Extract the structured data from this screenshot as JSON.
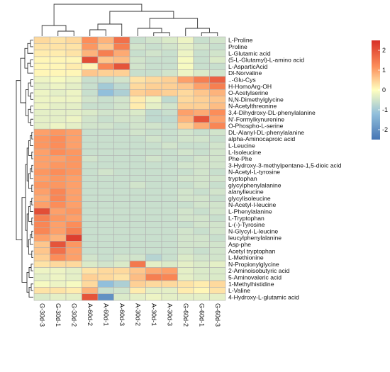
{
  "chart_data": {
    "type": "heatmap",
    "columns": [
      "G-30d-3",
      "G-30d-1",
      "G-30d-2",
      "A-60d-2",
      "A-60d-1",
      "A-60d-3",
      "A-30d-2",
      "A-30d-1",
      "A-30d-3",
      "G-60d-2",
      "G-60d-1",
      "G-60d-3"
    ],
    "rows": [
      "L-Proline",
      "Proline",
      "L-Glutamic acid",
      "(5-L-Glutamyl)-L-amino acid",
      "L-AsparticAcid",
      "Dl-Norvaline",
      "..-Glu-Cys",
      "H-HomoArg-OH",
      "O-Acetylserine",
      "N,N-Dimethylglycine",
      "N-Acetylthreonine",
      "3,4-Dihydroxy-DL-phenylalanine",
      "N'-Formylkynurenine",
      "O-Phospho-L-serine",
      "DL-Alanyl-DL-phenylalanine",
      "alpha-Aminocaproic acid",
      "L-Leucine",
      "L-Isoleucine",
      "Phe-Phe",
      "3-Hydroxy-3-methylpentane-1,5-dioic acid",
      "N-Acetyl-L-tyrosine",
      "tryptophan",
      "glycylphenylalanine",
      "alanylleucine",
      "glycylisoleucine",
      "N-Acetyl-l-leucine",
      "L-Phenylalanine",
      "L-Tryptophan",
      "L-(-)-Tyrosine",
      "N-Glycyl-L-leucine",
      "leucylphenylalanine",
      "Asp-phe",
      "Acetyl tryptophan",
      "L-Methionine",
      "N-Propionylglycine",
      "2-Aminoisobutyric acid",
      "5-Aminovaleric acid",
      "1-Methylhistidine",
      "L-Valine",
      "4-Hydroxy-L-glutamic acid"
    ],
    "values": [
      [
        0.4,
        0.3,
        0.4,
        1.2,
        0.8,
        1.6,
        -0.6,
        -0.5,
        -0.4,
        -0.2,
        -0.6,
        -0.5
      ],
      [
        0.3,
        0.3,
        0.3,
        1.1,
        0.6,
        1.4,
        -0.5,
        -0.6,
        -0.5,
        -0.3,
        -0.5,
        -0.6
      ],
      [
        0.2,
        0.2,
        0.3,
        0.8,
        1.4,
        0.9,
        -0.6,
        -0.5,
        -0.6,
        -0.2,
        -0.6,
        -0.5
      ],
      [
        0.1,
        0.1,
        0.1,
        2.1,
        0.6,
        0.7,
        -0.5,
        -0.6,
        -0.6,
        -0.1,
        -0.6,
        -0.4
      ],
      [
        0.1,
        0.1,
        0.2,
        0.1,
        1.3,
        2.0,
        -0.5,
        -0.6,
        -0.6,
        -0.1,
        -0.6,
        -0.6
      ],
      [
        0.1,
        0.1,
        0.1,
        0.6,
        0.5,
        0.5,
        -0.6,
        -0.6,
        -0.5,
        -0.2,
        -0.4,
        -0.5
      ],
      [
        -0.2,
        -0.1,
        -0.2,
        -0.6,
        -0.6,
        -0.5,
        0.3,
        0.4,
        0.5,
        1.0,
        1.4,
        1.8
      ],
      [
        -0.3,
        -0.2,
        -0.3,
        -0.6,
        -1.0,
        -0.7,
        0.4,
        0.5,
        0.5,
        0.6,
        1.0,
        1.4
      ],
      [
        -0.2,
        -0.3,
        -0.2,
        -0.6,
        -1.2,
        -0.9,
        0.5,
        0.6,
        0.5,
        0.4,
        0.6,
        0.8
      ],
      [
        -0.2,
        -0.2,
        -0.2,
        -0.5,
        -0.6,
        -0.5,
        0.2,
        -0.2,
        -0.7,
        0.4,
        0.5,
        0.6
      ],
      [
        -0.2,
        -0.3,
        -0.3,
        -0.6,
        -0.6,
        -0.5,
        0.2,
        -0.3,
        -0.5,
        0.5,
        0.5,
        0.7
      ],
      [
        -0.3,
        -0.3,
        -0.3,
        -0.4,
        -0.5,
        -0.5,
        -0.4,
        -0.7,
        -0.6,
        1.0,
        0.9,
        1.2
      ],
      [
        -0.3,
        -0.3,
        -0.2,
        -0.5,
        -0.6,
        -0.5,
        -0.5,
        -0.7,
        -0.7,
        0.8,
        2.0,
        1.0
      ],
      [
        -0.3,
        -0.2,
        -0.3,
        -0.5,
        -0.5,
        -0.6,
        -0.5,
        -0.5,
        -0.6,
        0.5,
        0.9,
        1.3
      ],
      [
        1.0,
        1.1,
        1.0,
        -0.6,
        -0.6,
        -0.6,
        -0.5,
        -0.6,
        -0.6,
        -0.5,
        -0.6,
        -0.5
      ],
      [
        1.1,
        1.2,
        1.0,
        -0.6,
        -0.6,
        -0.6,
        -0.6,
        -0.5,
        -0.6,
        -0.5,
        -0.5,
        -0.6
      ],
      [
        1.1,
        1.2,
        1.0,
        -0.6,
        -0.6,
        -0.6,
        -0.6,
        -0.6,
        -0.5,
        -0.6,
        -0.6,
        -0.5
      ],
      [
        1.0,
        1.2,
        1.1,
        -0.6,
        -0.6,
        -0.6,
        -0.6,
        -0.6,
        -0.6,
        -0.5,
        -0.6,
        -0.5
      ],
      [
        1.0,
        1.0,
        1.1,
        -0.5,
        -0.6,
        -0.6,
        -0.6,
        -0.5,
        -0.6,
        -0.6,
        -0.5,
        -0.5
      ],
      [
        1.0,
        1.1,
        1.1,
        -0.6,
        -0.6,
        -0.6,
        -0.6,
        -0.6,
        -0.6,
        -0.5,
        -0.5,
        -0.5
      ],
      [
        1.1,
        1.2,
        1.1,
        -0.6,
        -0.5,
        -0.6,
        -0.6,
        -0.6,
        -0.6,
        -0.6,
        -0.5,
        -0.6
      ],
      [
        1.0,
        1.1,
        1.0,
        -0.6,
        -0.6,
        -0.6,
        -0.6,
        -0.6,
        -0.6,
        -0.5,
        -0.5,
        -0.5
      ],
      [
        1.1,
        1.1,
        1.0,
        -0.6,
        -0.6,
        -0.6,
        -0.5,
        -0.6,
        -0.6,
        -0.6,
        -0.5,
        -0.6
      ],
      [
        1.0,
        1.3,
        1.0,
        -0.6,
        -0.6,
        -0.6,
        -0.6,
        -0.6,
        -0.6,
        -0.5,
        -0.6,
        -0.5
      ],
      [
        0.9,
        1.3,
        1.0,
        -0.6,
        -0.6,
        -0.6,
        -0.6,
        -0.6,
        -0.6,
        -0.5,
        -0.5,
        -0.6
      ],
      [
        1.0,
        1.2,
        1.0,
        -0.6,
        -0.6,
        -0.6,
        -0.6,
        -0.6,
        -0.6,
        -0.6,
        -0.5,
        -0.5
      ],
      [
        2.1,
        1.0,
        1.1,
        -0.6,
        -0.6,
        -0.6,
        -0.6,
        -0.6,
        -0.6,
        -0.5,
        -0.6,
        -0.5
      ],
      [
        1.4,
        1.1,
        1.0,
        -0.6,
        -0.6,
        -0.6,
        -0.6,
        -0.6,
        -0.6,
        -0.5,
        -0.5,
        -0.6
      ],
      [
        1.3,
        1.0,
        1.2,
        -0.6,
        -0.6,
        -0.6,
        -0.6,
        -0.6,
        -0.6,
        -0.6,
        -0.5,
        -0.5
      ],
      [
        1.3,
        1.0,
        1.4,
        -0.6,
        -0.6,
        -0.6,
        -0.6,
        -0.6,
        -0.6,
        -0.5,
        -0.6,
        -0.5
      ],
      [
        1.0,
        0.8,
        2.3,
        -0.6,
        -0.6,
        -0.6,
        -0.6,
        -0.6,
        -0.6,
        -0.5,
        -0.5,
        -0.6
      ],
      [
        0.6,
        2.0,
        1.1,
        -0.6,
        -0.6,
        -0.6,
        -0.6,
        -0.6,
        -0.6,
        -0.5,
        -0.5,
        -0.5
      ],
      [
        0.6,
        1.6,
        1.0,
        -0.6,
        -0.6,
        -0.6,
        -0.6,
        -0.6,
        -0.6,
        -0.5,
        -0.6,
        -0.5
      ],
      [
        0.5,
        1.2,
        1.0,
        -0.5,
        -0.6,
        -0.5,
        -0.5,
        -0.8,
        -0.6,
        -0.4,
        -0.5,
        -0.5
      ],
      [
        0.3,
        0.4,
        0.4,
        -0.4,
        -0.5,
        -0.4,
        1.5,
        -0.3,
        -0.4,
        -0.3,
        -0.4,
        -0.3
      ],
      [
        -0.2,
        -0.2,
        -0.3,
        0.3,
        0.4,
        0.4,
        0.6,
        0.9,
        1.0,
        -0.3,
        -0.4,
        -0.4
      ],
      [
        -0.3,
        -0.2,
        -0.3,
        0.5,
        0.4,
        0.3,
        0.7,
        1.4,
        1.3,
        -0.3,
        -0.4,
        -0.4
      ],
      [
        -0.1,
        -0.2,
        -0.1,
        0.4,
        -1.2,
        -0.9,
        0.5,
        0.4,
        0.4,
        0.3,
        0.2,
        0.4
      ],
      [
        0.3,
        0.3,
        0.2,
        0.8,
        -0.6,
        -0.5,
        0.2,
        -0.3,
        -0.3,
        0.2,
        0.1,
        0.3
      ],
      [
        -0.4,
        -0.3,
        -0.3,
        2.0,
        -2.0,
        -0.4,
        -0.3,
        -0.2,
        -0.3,
        -0.3,
        -0.3,
        -0.3
      ]
    ],
    "color_scale": {
      "min": -2.5,
      "max": 2.5,
      "stops": [
        {
          "value": -2.5,
          "color": "#4575b4"
        },
        {
          "value": -1.2,
          "color": "#91bfdb"
        },
        {
          "value": 0.0,
          "color": "#ffffbf"
        },
        {
          "value": 1.2,
          "color": "#fc8d59"
        },
        {
          "value": 2.5,
          "color": "#d73027"
        }
      ]
    },
    "legend": {
      "ticks": [
        "2",
        "1",
        "0",
        "-1",
        "-2"
      ],
      "tick_values": [
        2,
        1,
        0,
        -1,
        -2
      ],
      "position": "right"
    },
    "column_dendrogram": true,
    "row_dendrogram": true,
    "grid_color": "#b0b0b0"
  }
}
